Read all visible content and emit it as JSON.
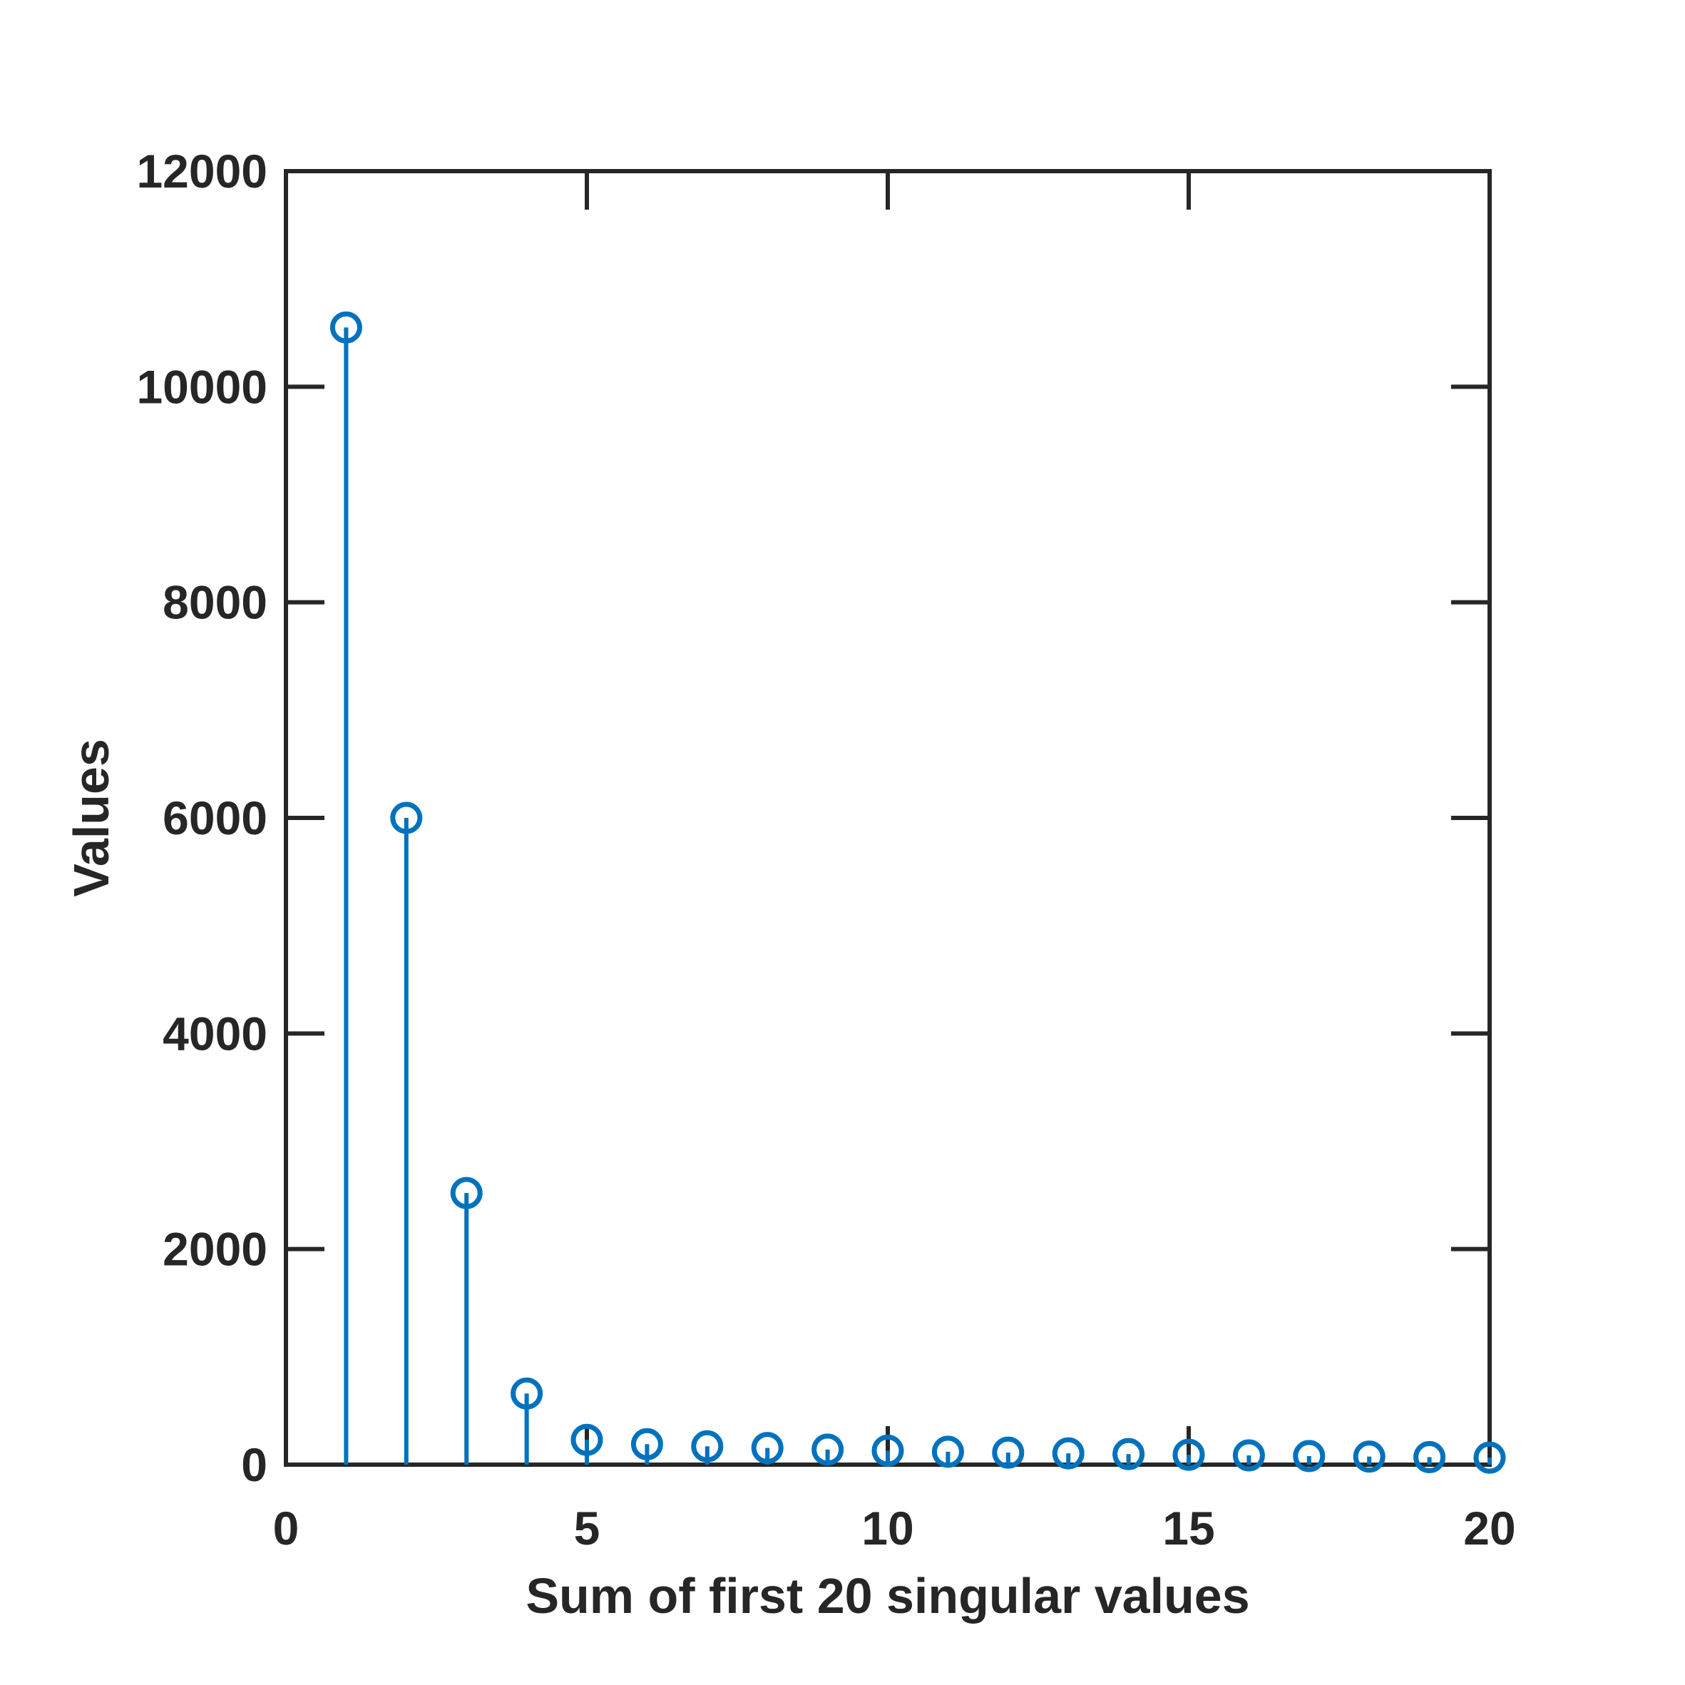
{
  "chart_data": {
    "type": "stem",
    "title": "",
    "xlabel": "Sum of first 20 singular values",
    "ylabel": "Values",
    "xlim": [
      0,
      20
    ],
    "ylim": [
      0,
      12000
    ],
    "xticks": [
      0,
      5,
      10,
      15,
      20
    ],
    "yticks": [
      0,
      2000,
      4000,
      6000,
      8000,
      10000,
      12000
    ],
    "grid": false,
    "series": [
      {
        "x": [
          1,
          2,
          3,
          4,
          5,
          6,
          7,
          8,
          9,
          10,
          11,
          12,
          13,
          14,
          15,
          16,
          17,
          18,
          19,
          20
        ],
        "values": [
          10550,
          6000,
          2520,
          660,
          230,
          190,
          170,
          155,
          140,
          130,
          120,
          112,
          105,
          98,
          92,
          86,
          80,
          75,
          70,
          65
        ]
      }
    ],
    "colors": {
      "series": "#0072BD",
      "axes": "#262626"
    }
  }
}
